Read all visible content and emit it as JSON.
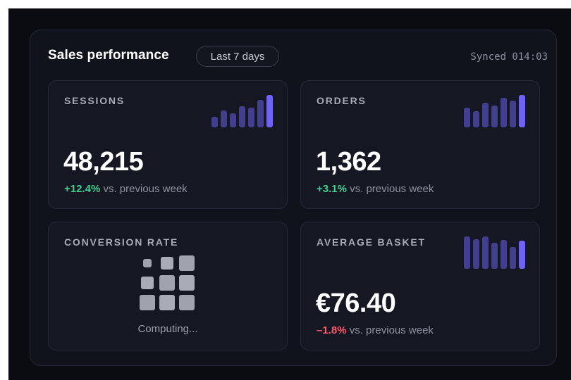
{
  "header": {
    "title": "Sales performance",
    "range_label": "Last 7 days",
    "synced_text": "Synced 014:03"
  },
  "cards": {
    "sessions": {
      "label": "SESSIONS",
      "value": "48,215",
      "change": "+12.4%",
      "comparison": "vs. previous week",
      "trend": "up",
      "spark": [
        0.33,
        0.52,
        0.44,
        0.65,
        0.61,
        0.85,
        1.0
      ]
    },
    "orders": {
      "label": "ORDERS",
      "value": "1,362",
      "change": "+3.1%",
      "comparison": "vs. previous week",
      "trend": "up",
      "spark": [
        0.6,
        0.51,
        0.75,
        0.67,
        0.92,
        0.82,
        1.0
      ]
    },
    "conversion": {
      "label": "CONVERSION RATE",
      "status": "Computing..."
    },
    "basket": {
      "label": "AVERAGE BASKET",
      "value": "€76.40",
      "change": "–1.8%",
      "comparison": "vs. previous week",
      "trend": "down",
      "spark": [
        1.0,
        0.92,
        1.0,
        0.81,
        0.89,
        0.67,
        0.86
      ]
    }
  },
  "colors": {
    "background": "#0b0c12",
    "panel": "#11131c",
    "card": "#151722",
    "positive": "#3fcf8e",
    "negative": "#ff5a6e",
    "spark_bar": "#433f8f",
    "spark_accent": "#6e63f2"
  }
}
